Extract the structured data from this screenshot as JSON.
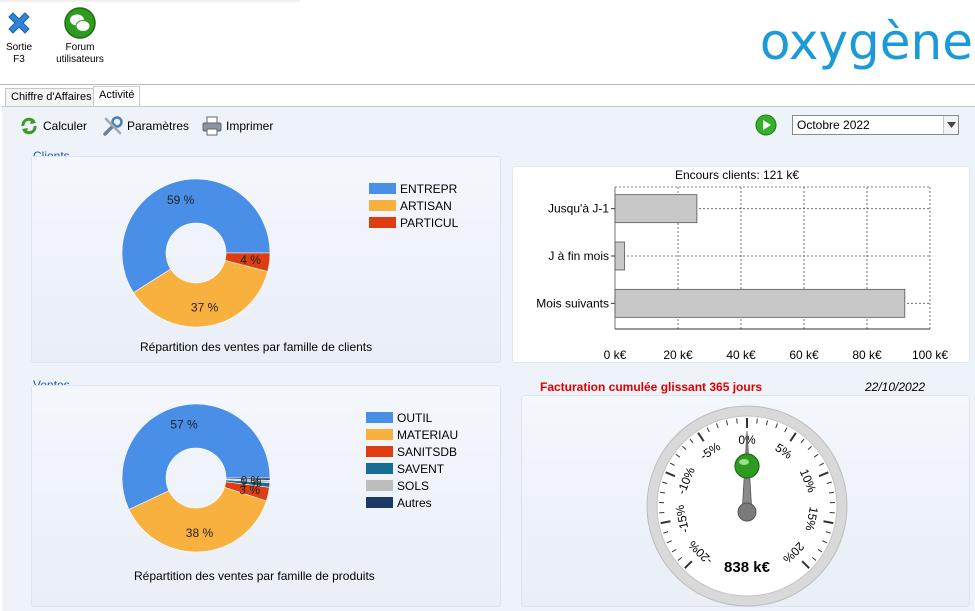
{
  "toolbar": {
    "exit": {
      "line1": "Sortie",
      "line2": "F3",
      "icon": "close-x-icon"
    },
    "forum": {
      "line1": "Forum",
      "line2": "utilisateurs",
      "icon": "chat-bubbles-icon"
    },
    "logo_text": "oxygène",
    "brand_color": "#1a9bd7"
  },
  "tabs": [
    {
      "label": "Chiffre d'Affaires",
      "active": false
    },
    {
      "label": "Activité",
      "active": true
    }
  ],
  "actions": {
    "calculate": "Calculer",
    "settings": "Paramètres",
    "print": "Imprimer",
    "period_select": "Octobre 2022"
  },
  "clients": {
    "section_label": "Clients",
    "caption": "Répartition des ventes par famille de clients",
    "legend": [
      {
        "label": "ENTREPR",
        "color": "#4a8fe7"
      },
      {
        "label": "ARTISAN",
        "color": "#f8b03f"
      },
      {
        "label": "PARTICUL",
        "color": "#de3d12"
      }
    ],
    "labels": [
      "37 %",
      "4 %",
      "59 %"
    ]
  },
  "encours": {
    "title": "Encours clients: 121 k€",
    "categories": [
      "Jusqu'à J-1",
      "J à fin mois",
      "Mois suivants"
    ],
    "ticks": [
      "0 k€",
      "20 k€",
      "40 k€",
      "60 k€",
      "80 k€",
      "100 k€"
    ]
  },
  "ventes": {
    "section_label": "Ventes",
    "caption": "Répartition des ventes par famille de produits",
    "legend": [
      {
        "label": "OUTIL",
        "color": "#4a8fe7"
      },
      {
        "label": "MATERIAU",
        "color": "#f8b03f"
      },
      {
        "label": "SANITSDB",
        "color": "#de3d12"
      },
      {
        "label": "SAVENT",
        "color": "#156e94"
      },
      {
        "label": "SOLS",
        "color": "#bdbdbd"
      },
      {
        "label": "Autres",
        "color": "#1d3a66"
      }
    ],
    "labels": [
      "38 %",
      "57 %",
      "3 %",
      "1 %",
      "0 %"
    ]
  },
  "gauge": {
    "title": "Facturation cumulée glissant 365 jours",
    "date": "22/10/2022",
    "value_text": "838 k€",
    "ticks": [
      "-20%",
      "-15%",
      "-10%",
      "-5%",
      "0%",
      "5%",
      "10%",
      "15%",
      "20%"
    ],
    "value_percent": 0,
    "indicator_color": "#2e9a1f"
  },
  "chart_data": [
    {
      "type": "pie",
      "title": "Répartition des ventes par famille de clients",
      "categories": [
        "ENTREPR",
        "ARTISAN",
        "PARTICUL"
      ],
      "values": [
        59,
        37,
        4
      ],
      "colors": [
        "#4a8fe7",
        "#f8b03f",
        "#de3d12"
      ]
    },
    {
      "type": "bar",
      "orientation": "horizontal",
      "title": "Encours clients: 121 k€",
      "categories": [
        "Jusqu'à J-1",
        "J à fin mois",
        "Mois suivants"
      ],
      "values": [
        26,
        3,
        92
      ],
      "xlim": [
        0,
        100
      ],
      "grid": true
    },
    {
      "type": "pie",
      "title": "Répartition des ventes par famille de produits",
      "categories": [
        "OUTIL",
        "MATERIAU",
        "SANITSDB",
        "SAVENT",
        "SOLS",
        "Autres"
      ],
      "values": [
        57,
        38,
        3,
        1,
        0.5,
        0.5
      ],
      "colors": [
        "#4a8fe7",
        "#f8b03f",
        "#de3d12",
        "#156e94",
        "#bdbdbd",
        "#1d3a66"
      ]
    }
  ]
}
